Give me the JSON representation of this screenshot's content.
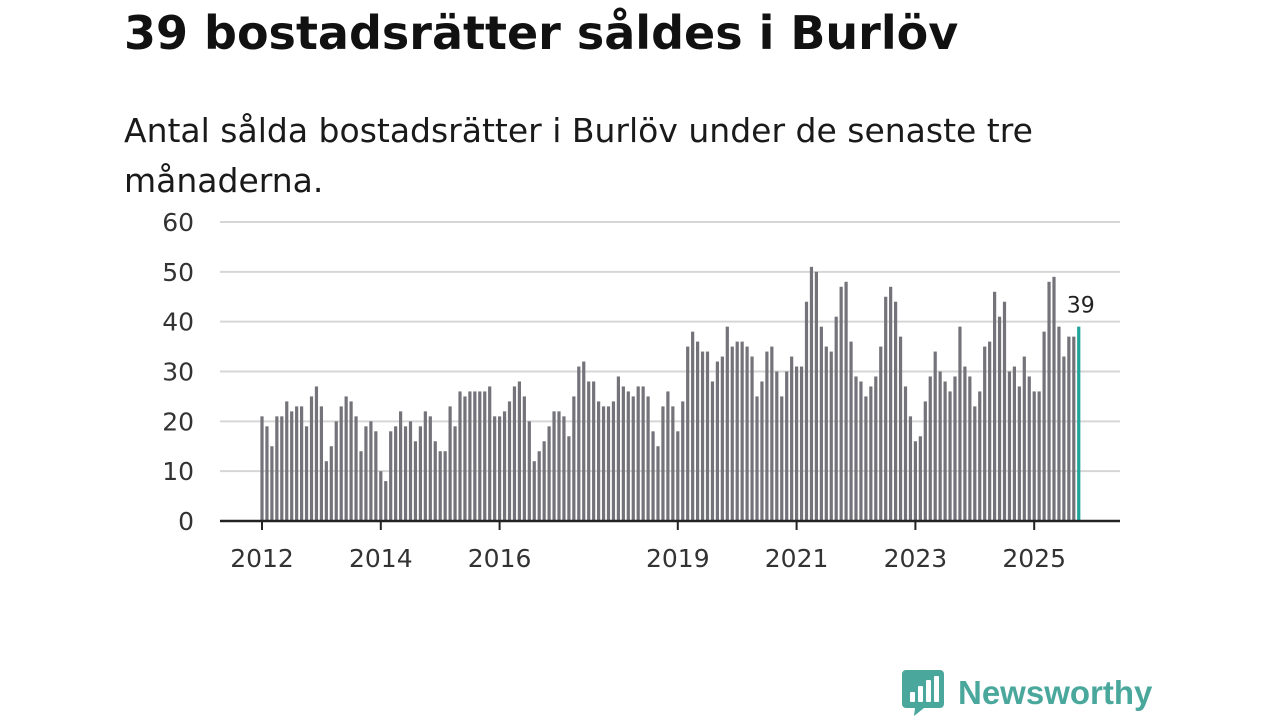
{
  "header": {
    "title": "39 bostadsrätter såldes i Burlöv",
    "subtitle": "Antal sålda bostadsrätter i Burlöv under de senaste tre månaderna."
  },
  "brand": {
    "name": "Newsworthy"
  },
  "colors": {
    "bar": "#74737a",
    "highlight": "#1fa39a",
    "grid": "#d6d6d6",
    "axis": "#222222",
    "brand": "#4aa79c"
  },
  "chart_data": {
    "type": "bar",
    "title": "39 bostadsrätter såldes i Burlöv",
    "subtitle": "Antal sålda bostadsrätter i Burlöv under de senaste tre månaderna.",
    "xlabel": "",
    "ylabel": "",
    "ylim": [
      0,
      60
    ],
    "yticks": [
      0,
      10,
      20,
      30,
      40,
      50,
      60
    ],
    "xticks": [
      {
        "label": "2012",
        "index": 0
      },
      {
        "label": "2014",
        "index": 24
      },
      {
        "label": "2016",
        "index": 48
      },
      {
        "label": "2019",
        "index": 84
      },
      {
        "label": "2021",
        "index": 108
      },
      {
        "label": "2023",
        "index": 132
      },
      {
        "label": "2025",
        "index": 156
      }
    ],
    "grid": true,
    "frequency": "monthly",
    "start": "2012-01",
    "values": [
      21,
      19,
      15,
      21,
      21,
      24,
      22,
      23,
      23,
      19,
      25,
      27,
      23,
      12,
      15,
      20,
      23,
      25,
      24,
      21,
      14,
      19,
      20,
      18,
      10,
      8,
      18,
      19,
      22,
      19,
      20,
      16,
      19,
      22,
      21,
      16,
      14,
      14,
      23,
      19,
      26,
      25,
      26,
      26,
      26,
      26,
      27,
      21,
      21,
      22,
      24,
      27,
      28,
      25,
      20,
      12,
      14,
      16,
      19,
      22,
      22,
      21,
      17,
      25,
      31,
      32,
      28,
      28,
      24,
      23,
      23,
      24,
      29,
      27,
      26,
      25,
      27,
      27,
      25,
      18,
      15,
      23,
      26,
      23,
      18,
      24,
      35,
      38,
      36,
      34,
      34,
      28,
      32,
      33,
      39,
      35,
      36,
      36,
      35,
      33,
      25,
      28,
      34,
      35,
      30,
      25,
      30,
      33,
      31,
      31,
      44,
      51,
      50,
      39,
      35,
      34,
      41,
      47,
      48,
      36,
      29,
      28,
      25,
      27,
      29,
      35,
      45,
      47,
      44,
      37,
      27,
      21,
      16,
      17,
      24,
      29,
      34,
      30,
      28,
      26,
      29,
      39,
      31,
      29,
      23,
      26,
      35,
      36,
      46,
      41,
      44,
      30,
      31,
      27,
      33,
      29,
      26,
      26,
      38,
      48,
      49,
      39,
      33,
      37,
      37,
      39
    ],
    "highlight_index": 165,
    "annotation": "39"
  }
}
